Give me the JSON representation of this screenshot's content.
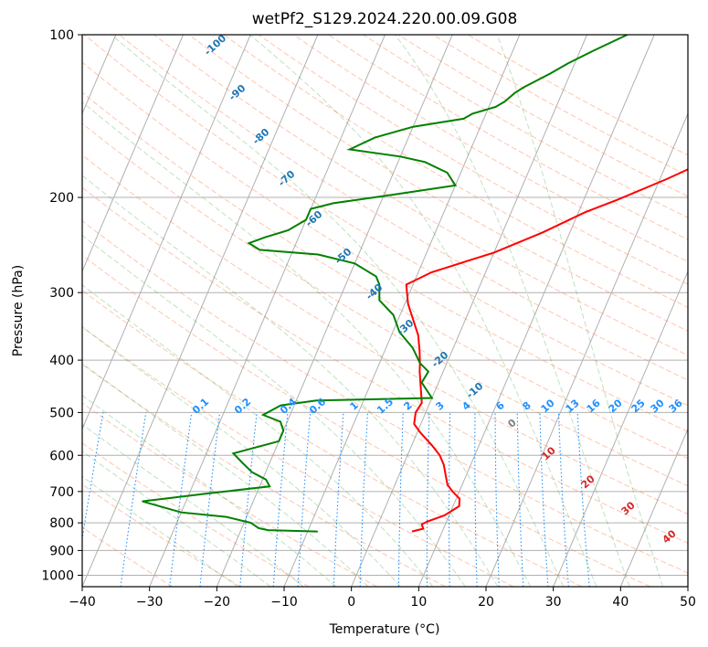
{
  "chart_data": {
    "type": "line",
    "title": "wetPf2_S129.2024.220.00.09.G08",
    "xlabel": "Temperature (°C)",
    "ylabel": "Pressure (hPa)",
    "xlim": [
      -40,
      50
    ],
    "ylim": [
      1050,
      100
    ],
    "y_scale": "log",
    "grid": true,
    "x_ticks": [
      "−40",
      "−30",
      "−20",
      "−10",
      "0",
      "10",
      "20",
      "30",
      "40",
      "50"
    ],
    "y_ticks": [
      "100",
      "200",
      "300",
      "400",
      "500",
      "600",
      "700",
      "800",
      "900",
      "1000"
    ],
    "dry_adiabat_labels": [
      "-100",
      "-90",
      "-80",
      "-70",
      "-60",
      "-50",
      "-40",
      "-30",
      "-20",
      "-10"
    ],
    "mixing_ratio_labels": [
      "0.1",
      "0.2",
      "0.4",
      "0.6",
      "1",
      "1.5",
      "2",
      "3",
      "4",
      "6",
      "8",
      "10",
      "13",
      "16",
      "20",
      "25",
      "30",
      "36"
    ],
    "moist_adiabat_labels": [
      "0",
      "10",
      "20",
      "30",
      "40"
    ],
    "colors": {
      "temperature": "#ff0000",
      "dewpoint": "#008000",
      "dry_adiabat_label": "#1f77b4",
      "mixing_ratio": "#1e90ff",
      "moist_adiabat_label": "#d62728",
      "zero_label": "#808080"
    },
    "series": [
      {
        "key": "temperature",
        "color": "#ff0000",
        "points": [
          [
            5.5,
            830
          ],
          [
            7,
            820
          ],
          [
            6.5,
            805
          ],
          [
            7.2,
            795
          ],
          [
            9.3,
            775
          ],
          [
            10.1,
            760
          ],
          [
            10.9,
            745
          ],
          [
            10.5,
            722
          ],
          [
            9.0,
            700
          ],
          [
            7.8,
            680
          ],
          [
            7.0,
            655
          ],
          [
            6.0,
            625
          ],
          [
            4.8,
            600
          ],
          [
            3.0,
            575
          ],
          [
            0.5,
            545
          ],
          [
            -1.0,
            525
          ],
          [
            -1.5,
            500
          ],
          [
            -1.2,
            480
          ],
          [
            -2.5,
            445
          ],
          [
            -3.5,
            420
          ],
          [
            -4.0,
            405
          ],
          [
            -4.8,
            385
          ],
          [
            -6.0,
            360
          ],
          [
            -7.5,
            340
          ],
          [
            -9.5,
            315
          ],
          [
            -11.0,
            290
          ],
          [
            -8.0,
            275
          ],
          [
            0,
            253
          ],
          [
            6,
            232
          ],
          [
            11,
            213
          ],
          [
            15,
            202
          ],
          [
            21,
            185
          ],
          [
            28,
            165
          ],
          [
            33,
            150
          ],
          [
            35,
            145
          ],
          [
            36,
            142
          ],
          [
            37,
            140
          ],
          [
            38,
            137
          ],
          [
            38.3,
            133
          ],
          [
            39,
            128
          ],
          [
            40,
            125
          ],
          [
            42,
            120
          ],
          [
            44,
            114
          ],
          [
            46,
            110
          ],
          [
            47,
            107
          ],
          [
            48.5,
            102
          ],
          [
            49,
            100
          ]
        ]
      },
      {
        "key": "dewpoint",
        "color": "#008000",
        "points": [
          [
            -8.5,
            830
          ],
          [
            -16,
            825
          ],
          [
            -17.5,
            818
          ],
          [
            -19,
            800
          ],
          [
            -23,
            780
          ],
          [
            -30,
            765
          ],
          [
            -36.5,
            730
          ],
          [
            -27,
            705
          ],
          [
            -18.5,
            685
          ],
          [
            -19.5,
            665
          ],
          [
            -22,
            645
          ],
          [
            -24,
            620
          ],
          [
            -26,
            595
          ],
          [
            -20,
            565
          ],
          [
            -20,
            540
          ],
          [
            -21,
            520
          ],
          [
            -24,
            505
          ],
          [
            -22,
            485
          ],
          [
            -17,
            475
          ],
          [
            0,
            470
          ],
          [
            -2.5,
            440
          ],
          [
            -2.2,
            420
          ],
          [
            -4,
            405
          ],
          [
            -6,
            380
          ],
          [
            -9,
            355
          ],
          [
            -11,
            330
          ],
          [
            -14,
            310
          ],
          [
            -15,
            290
          ],
          [
            -16,
            280
          ],
          [
            -20,
            265
          ],
          [
            -26,
            255
          ],
          [
            -35,
            250
          ],
          [
            -37,
            243
          ],
          [
            -35,
            237
          ],
          [
            -32,
            230
          ],
          [
            -30,
            220
          ],
          [
            -30,
            210
          ],
          [
            -27,
            205
          ],
          [
            -18,
            197
          ],
          [
            -10,
            190
          ],
          [
            -12,
            180
          ],
          [
            -16,
            172
          ],
          [
            -20,
            168
          ],
          [
            -28,
            163
          ],
          [
            -25,
            155
          ],
          [
            -20,
            148
          ],
          [
            -13,
            143
          ],
          [
            -12,
            140
          ],
          [
            -9,
            136
          ],
          [
            -8,
            133
          ],
          [
            -7,
            128
          ],
          [
            -6,
            125
          ],
          [
            -3,
            118
          ],
          [
            -1,
            113
          ],
          [
            2,
            107
          ],
          [
            6,
            100
          ]
        ]
      }
    ]
  }
}
